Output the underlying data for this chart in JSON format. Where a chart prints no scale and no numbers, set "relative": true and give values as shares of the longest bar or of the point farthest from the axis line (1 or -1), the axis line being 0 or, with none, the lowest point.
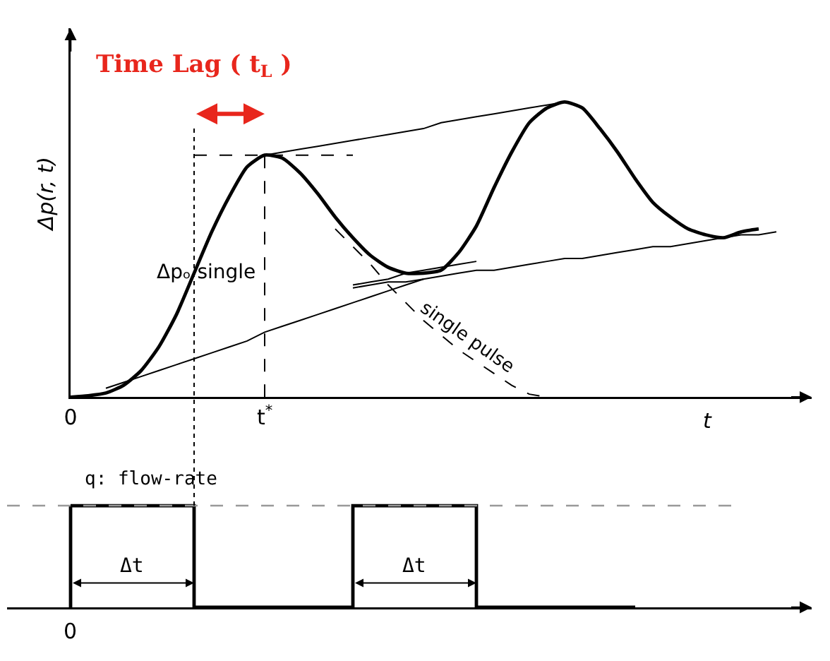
{
  "chart_data": [
    {
      "type": "line",
      "relative": true,
      "ylabel": "Δp(r, t)",
      "xlabel": "t",
      "marker": "none",
      "categories": [
        "0",
        null,
        null,
        null,
        null,
        null,
        null,
        null,
        null,
        null,
        null,
        "t$^{*}$",
        null,
        null,
        null,
        null,
        null,
        null,
        null,
        null,
        null,
        null,
        null,
        null,
        null,
        null,
        null,
        null,
        null,
        null,
        null,
        null,
        null,
        null,
        null,
        null,
        null,
        null,
        null,
        null,
        null
      ],
      "series": [
        {
          "color": "#000000",
          "line_style": "solid",
          "values": [
            0,
            0.005,
            0.014,
            0.04,
            0.09,
            0.17,
            0.28,
            0.42,
            0.56,
            0.68,
            0.78,
            0.82,
            0.81,
            0.76,
            0.69,
            0.61,
            0.54,
            0.48,
            0.44,
            0.42,
            0.42,
            0.43,
            0.49,
            0.58,
            0.71,
            0.83,
            0.93,
            0.98,
            1,
            0.98,
            0.91,
            0.83,
            0.74,
            0.66,
            0.61,
            0.57,
            0.55,
            0.54,
            0.56,
            0.57,
            null
          ]
        },
        {
          "color": "#000000",
          "line_style": "solid",
          "values": [
            null,
            null,
            null,
            null,
            null,
            null,
            null,
            null,
            null,
            null,
            null,
            0.82,
            0.83,
            0.84,
            0.85,
            0.86,
            0.87,
            0.88,
            0.89,
            0.9,
            0.91,
            0.93,
            0.94,
            0.95,
            0.96,
            0.97,
            0.98,
            0.99,
            1,
            null,
            null,
            null,
            null,
            null,
            null,
            null,
            null,
            null,
            null,
            null,
            null
          ]
        },
        {
          "color": "#000000",
          "line_style": "solid",
          "values": [
            null,
            null,
            0.03,
            0.05,
            0.07,
            0.09,
            0.11,
            0.13,
            0.15,
            0.17,
            0.19,
            0.22,
            0.24,
            0.26,
            0.28,
            0.3,
            0.32,
            0.34,
            0.36,
            0.38,
            0.4,
            null,
            null,
            null,
            null,
            null,
            null,
            null,
            null,
            null,
            null,
            null,
            null,
            null,
            null,
            null,
            null,
            null,
            null,
            null,
            null
          ]
        },
        {
          "color": "#000000",
          "line_style": "solid",
          "values": [
            null,
            null,
            null,
            null,
            null,
            null,
            null,
            null,
            null,
            null,
            null,
            null,
            null,
            null,
            null,
            null,
            0.37,
            0.38,
            0.39,
            0.39,
            0.4,
            0.41,
            0.42,
            0.43,
            0.43,
            0.44,
            0.45,
            0.46,
            0.47,
            0.47,
            0.48,
            0.49,
            0.5,
            0.51,
            0.51,
            0.52,
            0.53,
            0.54,
            0.55,
            0.55,
            0.56
          ]
        },
        {
          "color": "#000000",
          "line_style": "solid",
          "values": [
            null,
            null,
            null,
            null,
            null,
            null,
            null,
            null,
            null,
            null,
            null,
            null,
            null,
            null,
            null,
            null,
            0.38,
            0.39,
            0.4,
            0.42,
            0.43,
            0.44,
            0.45,
            0.46,
            null,
            null,
            null,
            null,
            null,
            null,
            null,
            null,
            null,
            null,
            null,
            null,
            null,
            null,
            null,
            null,
            null
          ]
        },
        {
          "color": "#000000",
          "line_style": "dashed",
          "values": [
            null,
            null,
            null,
            null,
            null,
            null,
            null,
            0.82,
            0.82,
            0.82,
            0.82,
            0.82,
            0.82,
            0.82,
            0.82,
            0.82,
            0.82,
            null,
            null,
            null,
            null,
            null,
            null,
            null,
            null,
            null,
            null,
            null,
            null,
            null,
            null,
            null,
            null,
            null,
            null,
            null,
            null,
            null,
            null,
            null,
            null
          ]
        },
        {
          "color": "#000000",
          "line_style": "dashed",
          "values": [
            null,
            null,
            null,
            null,
            null,
            null,
            null,
            null,
            null,
            null,
            null,
            null,
            null,
            null,
            null,
            0.57,
            0.51,
            0.45,
            0.38,
            0.32,
            0.26,
            0.21,
            0.16,
            0.12,
            0.08,
            0.04,
            0.01,
            0,
            null,
            null,
            null,
            null,
            null,
            null,
            null,
            null,
            null,
            null,
            null,
            null,
            null
          ]
        }
      ],
      "ref_lines": [
        {
          "axis": "x",
          "value": "t$^{*}$",
          "line_style": "dashed",
          "color": "#000000"
        }
      ],
      "annotations": [
        "Time Lag ( t$_{L}$ )",
        "Δpₒ single",
        "single pulse"
      ]
    },
    {
      "type": "step",
      "relative": true,
      "ylabel": "q: flow-rate",
      "marker": "none",
      "categories": [
        null,
        null,
        null,
        null,
        null,
        null,
        null,
        null,
        null,
        null,
        null,
        null,
        null,
        null,
        null,
        null,
        null,
        null,
        null,
        null,
        null,
        null,
        null,
        null,
        null,
        null,
        null,
        null,
        null,
        null,
        null,
        null,
        null,
        null,
        null,
        null,
        null,
        null,
        null,
        null,
        null
      ],
      "series": [
        {
          "color": "#000000",
          "line_style": "solid",
          "values": [
            1,
            1,
            1,
            1,
            1,
            1,
            1,
            0,
            0,
            0,
            0,
            0,
            0,
            0,
            0,
            0,
            1,
            1,
            1,
            1,
            1,
            1,
            1,
            0,
            0,
            0,
            0,
            0,
            0,
            0,
            0,
            0,
            0,
            null,
            null,
            null,
            null,
            null,
            null,
            null,
            null
          ]
        }
      ],
      "ref_lines": [
        {
          "axis": "y",
          "value": 1,
          "line_style": "dashed",
          "color": "#999999"
        }
      ],
      "annotations": [
        "Δt",
        "Δt",
        "0"
      ]
    }
  ]
}
